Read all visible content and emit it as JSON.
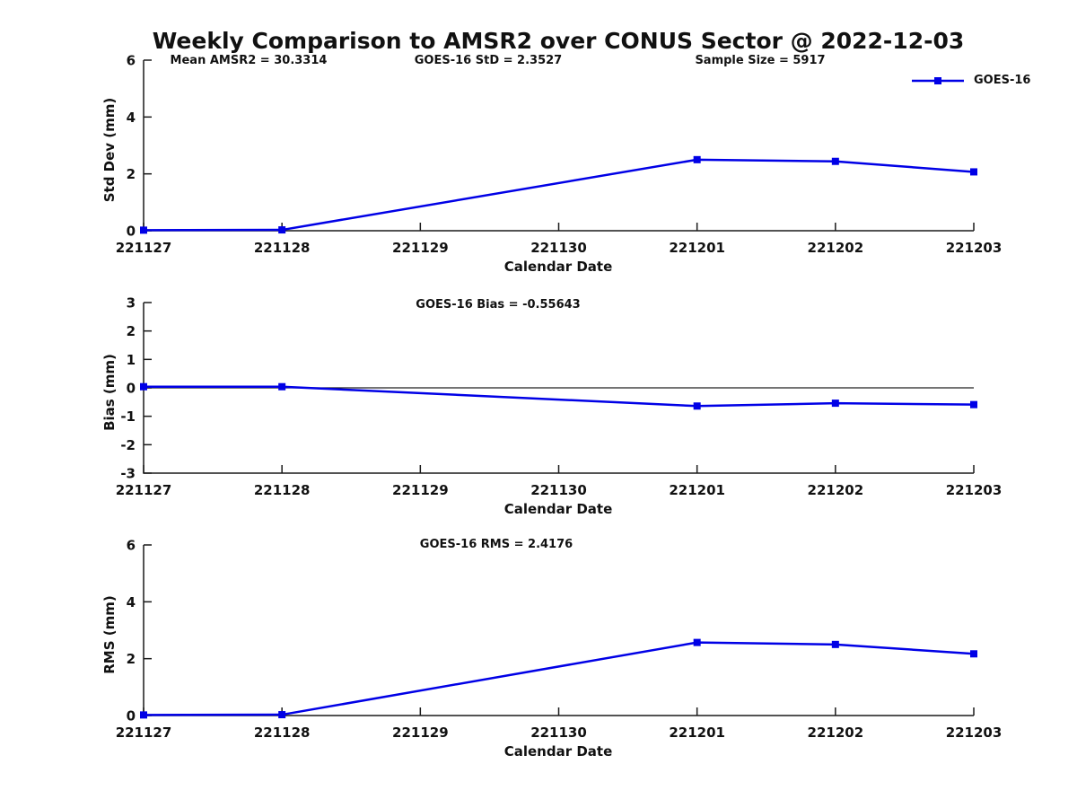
{
  "main_title": "Weekly Comparison to AMSR2 over CONUS Sector @ 2022-12-03",
  "annotations": [
    "Mean AMSR2 = 30.3314",
    "GOES-16 StD = 2.3527",
    "Sample Size = 5917"
  ],
  "legend": {
    "label": "GOES-16",
    "marker": "square",
    "position": "top-right"
  },
  "colors": {
    "line": "#0000E6",
    "axis": "#1a1a1a",
    "zero_line": "#222222",
    "text": "#111111",
    "background": "#ffffff"
  },
  "chart_data": [
    {
      "id": "std-dev",
      "type": "line",
      "title": "",
      "ylabel": "Std Dev (mm)",
      "xlabel": "Calendar Date",
      "x_ticklabels": [
        "221127",
        "221128",
        "221129",
        "221130",
        "221201",
        "221202",
        "221203"
      ],
      "yticks": [
        0,
        2,
        4,
        6
      ],
      "ylim": [
        0,
        6
      ],
      "grid": false,
      "zero_line": false,
      "series": [
        {
          "name": "GOES-16",
          "x": [
            "221127",
            "221128",
            "221201",
            "221202",
            "221203"
          ],
          "y": [
            0.02,
            0.03,
            2.5,
            2.44,
            2.07
          ]
        }
      ]
    },
    {
      "id": "bias",
      "type": "line",
      "title": "GOES-16 Bias  = -0.55643",
      "ylabel": "Bias (mm)",
      "xlabel": "Calendar Date",
      "x_ticklabels": [
        "221127",
        "221128",
        "221129",
        "221130",
        "221201",
        "221202",
        "221203"
      ],
      "yticks": [
        3,
        2,
        1,
        0,
        -1,
        -2,
        -3
      ],
      "ylim": [
        -3,
        3
      ],
      "grid": false,
      "zero_line": true,
      "series": [
        {
          "name": "GOES-16",
          "x": [
            "221127",
            "221128",
            "221201",
            "221202",
            "221203"
          ],
          "y": [
            0.04,
            0.04,
            -0.64,
            -0.54,
            -0.59
          ]
        }
      ]
    },
    {
      "id": "rms",
      "type": "line",
      "title": "GOES-16 RMS = 2.4176",
      "ylabel": "RMS (mm)",
      "xlabel": "Calendar Date",
      "x_ticklabels": [
        "221127",
        "221128",
        "221129",
        "221130",
        "221201",
        "221202",
        "221203"
      ],
      "yticks": [
        0,
        2,
        4,
        6
      ],
      "ylim": [
        0,
        6
      ],
      "grid": false,
      "zero_line": false,
      "series": [
        {
          "name": "GOES-16",
          "x": [
            "221127",
            "221128",
            "221201",
            "221202",
            "221203"
          ],
          "y": [
            0.02,
            0.03,
            2.57,
            2.5,
            2.17
          ]
        }
      ]
    }
  ]
}
